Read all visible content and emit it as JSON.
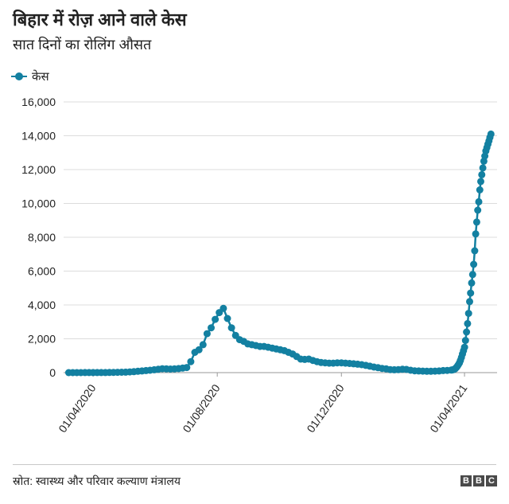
{
  "colors": {
    "series": "#1380a1",
    "grid": "#dcdcdc",
    "baseline": "#9a9a9a"
  },
  "footer": {
    "source": "स्रोत: स्वास्थ्य और परिवार कल्याण मंत्रालय"
  },
  "logo": {
    "letters": [
      "B",
      "B",
      "C"
    ]
  },
  "chart_data": {
    "type": "line",
    "title": "बिहार में रोज़ आने वाले केस",
    "subtitle": "सात दिनों का रोलिंग औसत",
    "ylim": [
      0,
      16000
    ],
    "yticks": [
      0,
      2000,
      4000,
      6000,
      8000,
      10000,
      12000,
      14000,
      16000
    ],
    "ytick_labels": [
      "0",
      "2,000",
      "4,000",
      "6,000",
      "8,000",
      "10,000",
      "12,000",
      "14,000",
      "16,000"
    ],
    "xlim": [
      "03/03/2020",
      "03/05/2021"
    ],
    "xtick_labels": [
      "01/04/2020",
      "01/08/2020",
      "01/12/2020",
      "01/04/2021"
    ],
    "grid": true,
    "legend": {
      "position": "top-left"
    },
    "series": [
      {
        "name": "केस",
        "x": [
          "08/03/2020",
          "12/03/2020",
          "16/03/2020",
          "20/03/2020",
          "24/03/2020",
          "28/03/2020",
          "01/04/2020",
          "05/04/2020",
          "09/04/2020",
          "13/04/2020",
          "17/04/2020",
          "21/04/2020",
          "25/04/2020",
          "29/04/2020",
          "03/05/2020",
          "07/05/2020",
          "11/05/2020",
          "15/05/2020",
          "19/05/2020",
          "23/05/2020",
          "27/05/2020",
          "31/05/2020",
          "04/06/2020",
          "08/06/2020",
          "12/06/2020",
          "16/06/2020",
          "20/06/2020",
          "24/06/2020",
          "28/06/2020",
          "02/07/2020",
          "06/07/2020",
          "10/07/2020",
          "14/07/2020",
          "18/07/2020",
          "22/07/2020",
          "26/07/2020",
          "30/07/2020",
          "03/08/2020",
          "07/08/2020",
          "11/08/2020",
          "15/08/2020",
          "19/08/2020",
          "23/08/2020",
          "27/08/2020",
          "31/08/2020",
          "04/09/2020",
          "08/09/2020",
          "12/09/2020",
          "16/09/2020",
          "20/09/2020",
          "24/09/2020",
          "28/09/2020",
          "02/10/2020",
          "06/10/2020",
          "10/10/2020",
          "14/10/2020",
          "18/10/2020",
          "22/10/2020",
          "26/10/2020",
          "30/10/2020",
          "03/11/2020",
          "07/11/2020",
          "11/11/2020",
          "15/11/2020",
          "19/11/2020",
          "23/11/2020",
          "27/11/2020",
          "01/12/2020",
          "05/12/2020",
          "09/12/2020",
          "13/12/2020",
          "17/12/2020",
          "21/12/2020",
          "25/12/2020",
          "29/12/2020",
          "02/01/2021",
          "06/01/2021",
          "10/01/2021",
          "14/01/2021",
          "18/01/2021",
          "22/01/2021",
          "26/01/2021",
          "30/01/2021",
          "03/02/2021",
          "07/02/2021",
          "11/02/2021",
          "15/02/2021",
          "19/02/2021",
          "23/02/2021",
          "27/02/2021",
          "03/03/2021",
          "07/03/2021",
          "11/03/2021",
          "15/03/2021",
          "19/03/2021",
          "20/03/2021",
          "21/03/2021",
          "22/03/2021",
          "23/03/2021",
          "24/03/2021",
          "25/03/2021",
          "26/03/2021",
          "27/03/2021",
          "28/03/2021",
          "29/03/2021",
          "30/03/2021",
          "31/03/2021",
          "01/04/2021",
          "02/04/2021",
          "03/04/2021",
          "04/04/2021",
          "05/04/2021",
          "06/04/2021",
          "07/04/2021",
          "08/04/2021",
          "09/04/2021",
          "10/04/2021",
          "11/04/2021",
          "12/04/2021",
          "13/04/2021",
          "14/04/2021",
          "15/04/2021",
          "16/04/2021",
          "17/04/2021",
          "18/04/2021",
          "19/04/2021",
          "20/04/2021",
          "21/04/2021",
          "22/04/2021",
          "23/04/2021",
          "24/04/2021",
          "25/04/2021",
          "26/04/2021",
          "27/04/2021"
        ],
        "y": [
          0,
          0,
          0,
          1,
          3,
          5,
          5,
          6,
          6,
          7,
          9,
          13,
          20,
          25,
          30,
          40,
          55,
          80,
          100,
          120,
          140,
          170,
          200,
          230,
          220,
          210,
          220,
          240,
          270,
          300,
          650,
          1200,
          1350,
          1650,
          2300,
          2650,
          3150,
          3550,
          3800,
          3200,
          2650,
          2200,
          1950,
          1850,
          1700,
          1650,
          1600,
          1550,
          1550,
          1500,
          1450,
          1400,
          1350,
          1300,
          1200,
          1100,
          950,
          800,
          780,
          800,
          720,
          650,
          600,
          580,
          560,
          560,
          580,
          580,
          560,
          540,
          520,
          500,
          470,
          430,
          380,
          330,
          290,
          250,
          220,
          180,
          170,
          180,
          200,
          190,
          140,
          110,
          100,
          90,
          80,
          80,
          90,
          100,
          120,
          130,
          150,
          160,
          180,
          200,
          240,
          300,
          380,
          470,
          580,
          720,
          900,
          1100,
          1300,
          1500,
          1900,
          2400,
          2900,
          3500,
          4200,
          4700,
          5300,
          5800,
          6400,
          7200,
          8200,
          8900,
          9600,
          10100,
          10800,
          11300,
          11700,
          12100,
          12500,
          12800,
          13100,
          13300,
          13500,
          13700,
          13900,
          14100
        ]
      }
    ]
  }
}
